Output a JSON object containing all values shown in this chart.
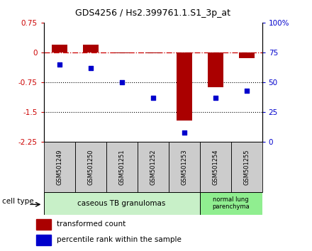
{
  "title": "GDS4256 / Hs2.399761.1.S1_3p_at",
  "samples": [
    "GSM501249",
    "GSM501250",
    "GSM501251",
    "GSM501252",
    "GSM501253",
    "GSM501254",
    "GSM501255"
  ],
  "red_values": [
    0.2,
    0.2,
    -0.02,
    -0.02,
    -1.72,
    -0.88,
    -0.15
  ],
  "blue_percentiles": [
    65,
    62,
    50,
    37,
    8,
    37,
    43
  ],
  "ylim_left": [
    -2.25,
    0.75
  ],
  "ylim_right": [
    0,
    100
  ],
  "yticks_left": [
    0.75,
    0,
    -0.75,
    -1.5,
    -2.25
  ],
  "yticks_right": [
    0,
    25,
    50,
    75,
    100
  ],
  "ytick_labels_right": [
    "0",
    "25",
    "50",
    "75",
    "100%"
  ],
  "groups": [
    {
      "label": "caseous TB granulomas",
      "samples_idx": [
        0,
        4
      ],
      "color": "#c8f0c8"
    },
    {
      "label": "normal lung\nparenchyma",
      "samples_idx": [
        5,
        6
      ],
      "color": "#90ee90"
    }
  ],
  "cell_type_label": "cell type",
  "legend_red": "transformed count",
  "legend_blue": "percentile rank within the sample",
  "bar_color": "#aa0000",
  "point_color": "#0000cc",
  "dash_color": "#cc0000",
  "sample_box_color": "#cccccc",
  "bar_width": 0.5
}
